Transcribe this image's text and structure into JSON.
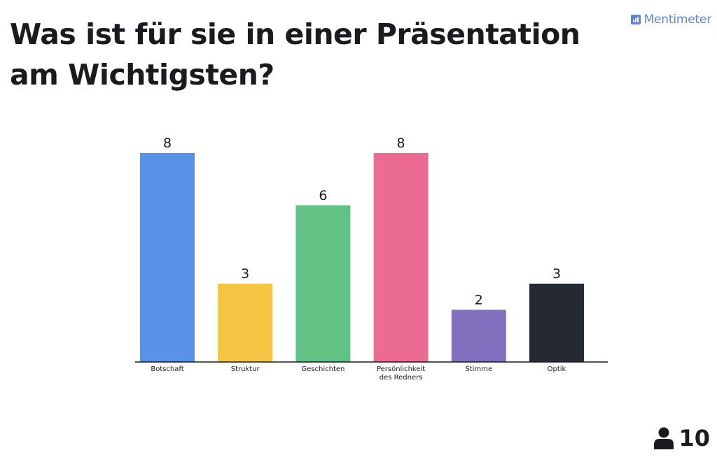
{
  "question": "Was ist für sie in einer Präsentation am Wichtigsten?",
  "brand": {
    "name": "Mentimeter",
    "icon": "bar-chart-icon",
    "color": "#5b84d6"
  },
  "participants": {
    "icon": "person-icon",
    "count": "10"
  },
  "chart_data": {
    "type": "bar",
    "title": "Was ist für sie in einer Präsentation am Wichtigsten?",
    "categories": [
      "Botschaft",
      "Struktur",
      "Geschichten",
      "Persönlichkeit des Redners",
      "Stimme",
      "Optik"
    ],
    "category_lines": [
      [
        "Botschaft"
      ],
      [
        "Struktur"
      ],
      [
        "Geschichten"
      ],
      [
        "Persönlichkeit",
        "des Redners"
      ],
      [
        "Stimme"
      ],
      [
        "Optik"
      ]
    ],
    "values": [
      8,
      3,
      6,
      8,
      2,
      3
    ],
    "colors": [
      "#5792e6",
      "#f5c443",
      "#62c185",
      "#ec6b93",
      "#7f6fbd",
      "#252932"
    ],
    "ylim": [
      0,
      8
    ],
    "grid": false,
    "legend": "none",
    "xlabel": "",
    "ylabel": ""
  }
}
